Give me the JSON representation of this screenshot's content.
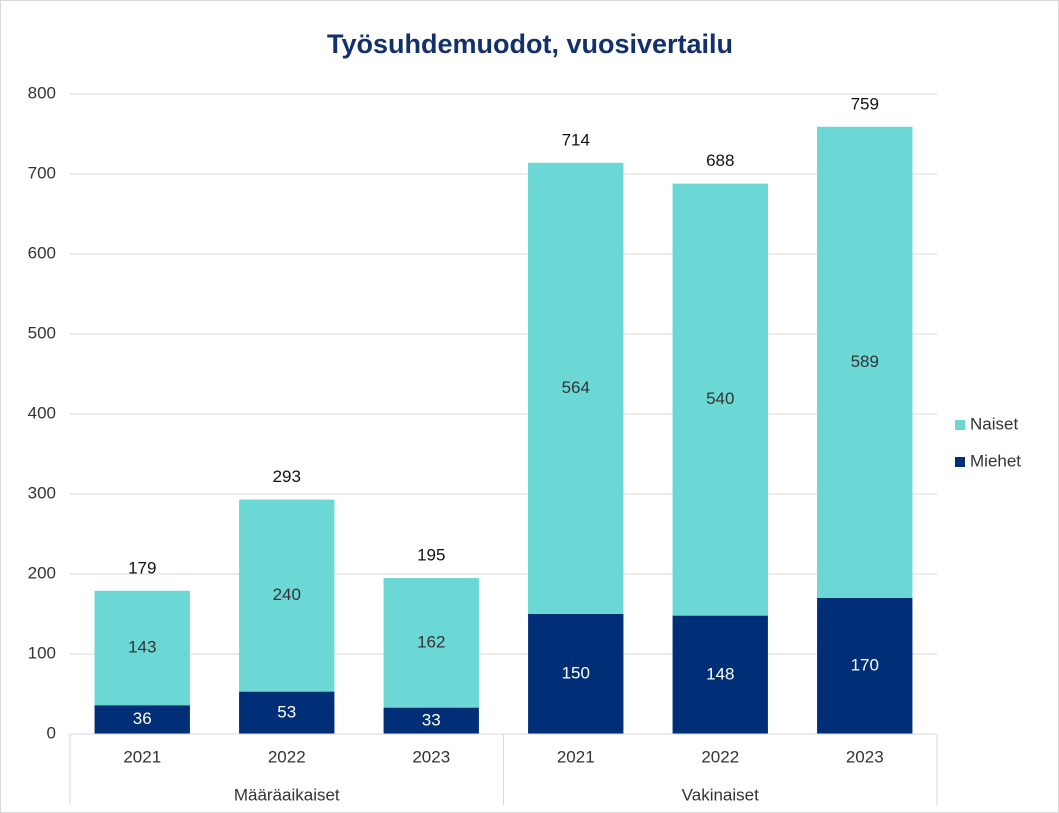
{
  "chart_data": {
    "type": "stacked_bar",
    "title": "Työsuhdemuodot, vuosivertailu",
    "groups": [
      {
        "name": "Määräaikaiset",
        "categories": [
          "2021",
          "2022",
          "2023"
        ]
      },
      {
        "name": "Vakinaiset",
        "categories": [
          "2021",
          "2022",
          "2023"
        ]
      }
    ],
    "series": [
      {
        "name": "Miehet",
        "color": "#002f78",
        "values": [
          36,
          53,
          33,
          150,
          148,
          170
        ]
      },
      {
        "name": "Naiset",
        "color": "#6bd8d6",
        "values": [
          143,
          240,
          162,
          564,
          540,
          589
        ]
      }
    ],
    "totals": [
      179,
      293,
      195,
      714,
      688,
      759
    ],
    "ylim": [
      0,
      800
    ],
    "yticks": [
      0,
      100,
      200,
      300,
      400,
      500,
      600,
      700,
      800
    ],
    "grid": true
  }
}
